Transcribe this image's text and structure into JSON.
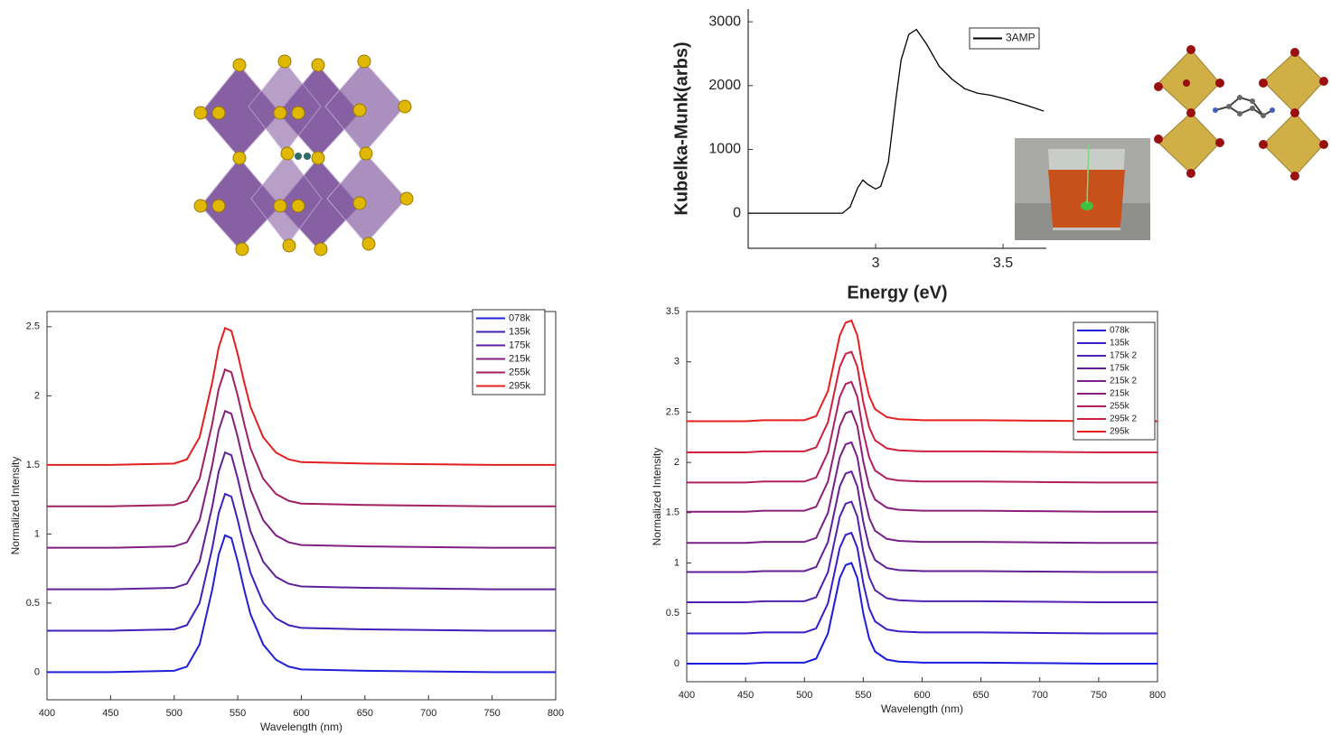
{
  "chart_data": [
    {
      "type": "line",
      "xlabel": "Energy (eV)",
      "ylabel": "Kubelka-Munk(arbs)",
      "x": [
        2.5,
        2.8,
        2.87,
        2.9,
        2.93,
        2.95,
        2.97,
        3.0,
        3.02,
        3.05,
        3.08,
        3.1,
        3.13,
        3.16,
        3.2,
        3.25,
        3.3,
        3.35,
        3.4,
        3.45,
        3.5,
        3.6,
        3.66
      ],
      "series": [
        {
          "name": "3AMP",
          "color": "#000000",
          "values": [
            0,
            0,
            0,
            100,
            400,
            520,
            450,
            380,
            420,
            800,
            1800,
            2400,
            2800,
            2880,
            2650,
            2300,
            2100,
            1950,
            1880,
            1850,
            1800,
            1680,
            1600
          ]
        }
      ],
      "xlim": [
        2.5,
        3.67
      ],
      "xticks": [
        3,
        3.5
      ],
      "ylim": [
        -550,
        3200
      ],
      "yticks": [
        0,
        1000,
        2000,
        3000
      ],
      "grid": false,
      "legend": "upper right"
    },
    {
      "type": "line",
      "xlabel": "Wavelength (nm)",
      "ylabel": "Normalized Intensity",
      "x": [
        400,
        450,
        500,
        510,
        520,
        530,
        535,
        540,
        545,
        550,
        555,
        560,
        570,
        580,
        590,
        600,
        650,
        700,
        750,
        800
      ],
      "series": [
        {
          "name": "078k",
          "color": "#2020d8",
          "values": [
            0,
            0,
            0.01,
            0.04,
            0.2,
            0.6,
            0.85,
            0.99,
            0.97,
            0.8,
            0.6,
            0.42,
            0.2,
            0.09,
            0.04,
            0.02,
            0.01,
            0.005,
            0,
            0
          ]
        },
        {
          "name": "135k",
          "color": "#4020b8",
          "values": [
            0.3,
            0.3,
            0.31,
            0.34,
            0.5,
            0.9,
            1.15,
            1.29,
            1.27,
            1.1,
            0.9,
            0.72,
            0.5,
            0.39,
            0.34,
            0.32,
            0.31,
            0.305,
            0.3,
            0.3
          ]
        },
        {
          "name": "175k",
          "color": "#602098",
          "values": [
            0.6,
            0.6,
            0.61,
            0.64,
            0.8,
            1.2,
            1.45,
            1.59,
            1.57,
            1.4,
            1.2,
            1.02,
            0.8,
            0.69,
            0.64,
            0.62,
            0.61,
            0.605,
            0.6,
            0.6
          ]
        },
        {
          "name": "215k",
          "color": "#802080",
          "values": [
            0.9,
            0.9,
            0.91,
            0.94,
            1.1,
            1.5,
            1.75,
            1.89,
            1.87,
            1.7,
            1.5,
            1.32,
            1.1,
            0.99,
            0.94,
            0.92,
            0.91,
            0.905,
            0.9,
            0.9
          ]
        },
        {
          "name": "255k",
          "color": "#a02060",
          "values": [
            1.2,
            1.2,
            1.21,
            1.24,
            1.4,
            1.8,
            2.05,
            2.19,
            2.17,
            2.0,
            1.8,
            1.62,
            1.4,
            1.29,
            1.24,
            1.22,
            1.21,
            1.205,
            1.2,
            1.2
          ]
        },
        {
          "name": "295k",
          "color": "#e02020",
          "values": [
            1.5,
            1.5,
            1.51,
            1.54,
            1.7,
            2.1,
            2.35,
            2.49,
            2.47,
            2.3,
            2.1,
            1.92,
            1.7,
            1.59,
            1.54,
            1.52,
            1.51,
            1.505,
            1.5,
            1.5
          ]
        }
      ],
      "xlim": [
        400,
        800
      ],
      "xticks": [
        400,
        450,
        500,
        550,
        600,
        650,
        700,
        750,
        800
      ],
      "ylim": [
        -0.2,
        2.61
      ],
      "yticks": [
        0,
        0.5,
        1,
        1.5,
        2,
        2.5
      ],
      "grid": false,
      "legend": "upper right"
    },
    {
      "type": "line",
      "xlabel": "Wavelength (nm)",
      "ylabel": "Normalized Intensity",
      "x": [
        400,
        450,
        465,
        500,
        510,
        520,
        530,
        535,
        540,
        545,
        550,
        555,
        560,
        570,
        580,
        600,
        650,
        700,
        750,
        800
      ],
      "series": [
        {
          "name": "078k",
          "color": "#1c1ce0",
          "values": [
            0,
            0,
            0.01,
            0.01,
            0.05,
            0.3,
            0.85,
            0.98,
            1.0,
            0.85,
            0.5,
            0.25,
            0.12,
            0.04,
            0.02,
            0.01,
            0.01,
            0.005,
            0,
            0
          ]
        },
        {
          "name": "135k",
          "color": "#3a1cc8",
          "values": [
            0.3,
            0.3,
            0.31,
            0.31,
            0.35,
            0.6,
            1.15,
            1.28,
            1.3,
            1.15,
            0.8,
            0.55,
            0.42,
            0.34,
            0.32,
            0.31,
            0.31,
            0.305,
            0.3,
            0.3
          ]
        },
        {
          "name": "175k 2",
          "color": "#5020b0",
          "values": [
            0.61,
            0.61,
            0.62,
            0.62,
            0.66,
            0.91,
            1.46,
            1.59,
            1.61,
            1.46,
            1.11,
            0.86,
            0.73,
            0.65,
            0.63,
            0.62,
            0.62,
            0.615,
            0.61,
            0.61
          ]
        },
        {
          "name": "175k",
          "color": "#602098",
          "values": [
            0.91,
            0.91,
            0.92,
            0.92,
            0.96,
            1.21,
            1.76,
            1.89,
            1.91,
            1.76,
            1.41,
            1.16,
            1.03,
            0.95,
            0.93,
            0.92,
            0.92,
            0.915,
            0.91,
            0.91
          ]
        },
        {
          "name": "215k 2",
          "color": "#782088",
          "values": [
            1.2,
            1.2,
            1.21,
            1.21,
            1.25,
            1.5,
            2.05,
            2.18,
            2.2,
            2.05,
            1.7,
            1.45,
            1.32,
            1.24,
            1.22,
            1.21,
            1.21,
            1.205,
            1.2,
            1.2
          ]
        },
        {
          "name": "215k",
          "color": "#8c2078",
          "values": [
            1.51,
            1.51,
            1.52,
            1.52,
            1.56,
            1.81,
            2.36,
            2.49,
            2.51,
            2.36,
            2.01,
            1.76,
            1.63,
            1.55,
            1.53,
            1.52,
            1.52,
            1.515,
            1.51,
            1.51
          ]
        },
        {
          "name": "255k",
          "color": "#b02060",
          "values": [
            1.8,
            1.8,
            1.81,
            1.81,
            1.85,
            2.1,
            2.65,
            2.78,
            2.8,
            2.65,
            2.3,
            2.05,
            1.92,
            1.84,
            1.82,
            1.81,
            1.81,
            1.805,
            1.8,
            1.8
          ]
        },
        {
          "name": "295k 2",
          "color": "#d02040",
          "values": [
            2.1,
            2.1,
            2.11,
            2.11,
            2.15,
            2.4,
            2.95,
            3.08,
            3.1,
            2.95,
            2.6,
            2.35,
            2.22,
            2.14,
            2.12,
            2.11,
            2.11,
            2.105,
            2.1,
            2.1
          ]
        },
        {
          "name": "295k",
          "color": "#e82020",
          "values": [
            2.41,
            2.41,
            2.42,
            2.42,
            2.46,
            2.71,
            3.26,
            3.39,
            3.41,
            3.26,
            2.91,
            2.66,
            2.53,
            2.45,
            2.43,
            2.42,
            2.42,
            2.415,
            2.41,
            2.41
          ]
        }
      ],
      "xlim": [
        400,
        800
      ],
      "xticks": [
        400,
        450,
        500,
        550,
        600,
        650,
        700,
        750,
        800
      ],
      "ylim": [
        -0.18,
        3.5
      ],
      "yticks": [
        0,
        0.5,
        1,
        1.5,
        2,
        2.5,
        3,
        3.5
      ],
      "grid": false,
      "legend": "upper right"
    }
  ]
}
